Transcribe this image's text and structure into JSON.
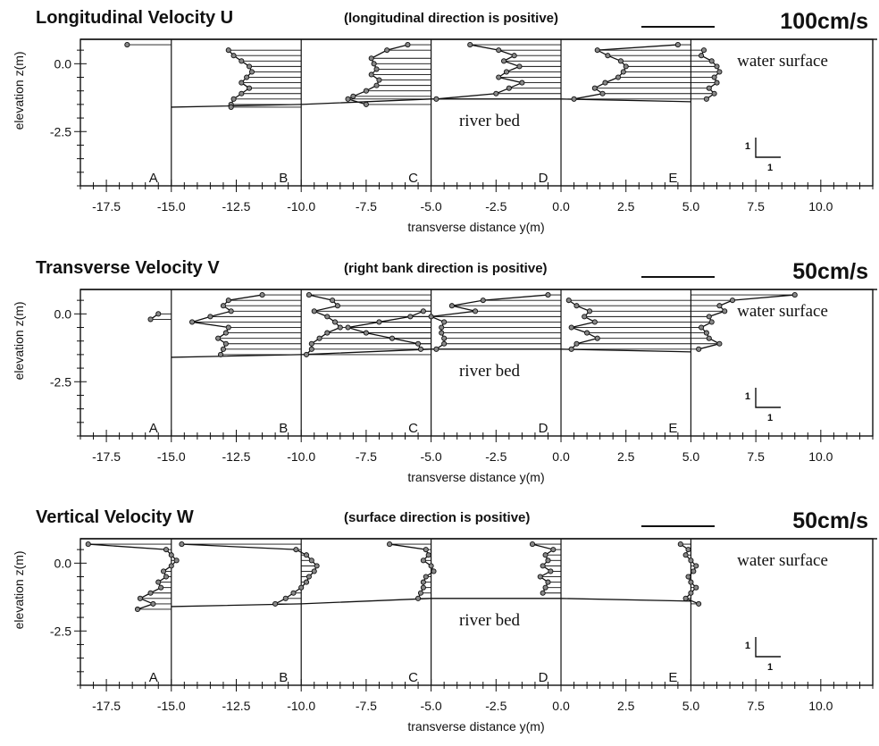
{
  "chart_data": [
    {
      "type": "line",
      "title": "Longitudinal Velocity U",
      "note": "(longitudinal direction is positive)",
      "scale_label": "100cm/s",
      "xlabel": "transverse distance y(m)",
      "ylabel": "elevation z(m)",
      "xlim": [
        -18.5,
        12
      ],
      "ylim": [
        -4.5,
        0.9
      ],
      "x_ticks": [
        "-17.5",
        "-15.0",
        "-12.5",
        "-10.0",
        "-7.5",
        "-5.0",
        "-2.5",
        "0.0",
        "2.5",
        "5.0",
        "7.5",
        "10.0"
      ],
      "y_ticks": [
        "0.0",
        "-2.5"
      ],
      "annotations": {
        "surface": "water surface",
        "bed": "river bed",
        "scale_v": "1",
        "scale_h": "1"
      },
      "stations": [
        {
          "label": "A",
          "x": -15,
          "z": [
            0.7
          ],
          "values": [
            -16.7
          ],
          "bed": -1.6
        },
        {
          "label": "B",
          "x": -10,
          "z": [
            0.5,
            0.3,
            0.1,
            -0.1,
            -0.3,
            -0.5,
            -0.7,
            -0.9,
            -1.1,
            -1.3,
            -1.5,
            -1.6
          ],
          "values": [
            -12.8,
            -12.6,
            -12.3,
            -12.0,
            -11.9,
            -12.1,
            -12.3,
            -12.0,
            -12.3,
            -12.6,
            -12.7,
            -12.7
          ],
          "bed": -1.5
        },
        {
          "label": "C",
          "x": -5,
          "z": [
            0.7,
            0.5,
            0.2,
            0.0,
            -0.2,
            -0.4,
            -0.6,
            -0.8,
            -1.0,
            -1.2,
            -1.3,
            -1.5
          ],
          "values": [
            -5.9,
            -6.7,
            -7.3,
            -7.2,
            -7.1,
            -7.3,
            -7.0,
            -7.1,
            -7.5,
            -8.0,
            -8.2,
            -7.5
          ],
          "bed": -1.3
        },
        {
          "label": "D",
          "x": 0,
          "z": [
            0.7,
            0.5,
            0.3,
            0.1,
            -0.1,
            -0.3,
            -0.5,
            -0.7,
            -0.9,
            -1.1,
            -1.3
          ],
          "values": [
            -3.5,
            -2.4,
            -1.8,
            -2.2,
            -1.6,
            -2.1,
            -2.4,
            -1.5,
            -2.0,
            -2.5,
            -4.8
          ],
          "bed": -1.3
        },
        {
          "label": "E",
          "x": 5,
          "z": [
            0.7,
            0.5,
            0.3,
            0.1,
            -0.1,
            -0.3,
            -0.5,
            -0.7,
            -0.9,
            -1.1,
            -1.3
          ],
          "values": [
            4.5,
            1.4,
            1.8,
            2.3,
            2.5,
            2.4,
            2.2,
            1.7,
            1.3,
            1.6,
            0.5
          ],
          "bed": -1.4
        },
        {
          "label": "",
          "x": 5,
          "z": [
            0.5,
            0.3,
            0.1,
            -0.1,
            -0.3,
            -0.5,
            -0.7,
            -0.9,
            -1.1,
            -1.3
          ],
          "values": [
            5.5,
            5.4,
            5.8,
            6.0,
            6.1,
            5.9,
            6.0,
            5.7,
            5.9,
            5.6
          ],
          "bed": -1.4
        }
      ]
    },
    {
      "type": "line",
      "title": "Transverse Velocity V",
      "note": "(right bank direction is positive)",
      "scale_label": "50cm/s",
      "xlabel": "transverse distance y(m)",
      "ylabel": "elevation z(m)",
      "xlim": [
        -18.5,
        12
      ],
      "ylim": [
        -4.5,
        0.9
      ],
      "x_ticks": [
        "-17.5",
        "-15.0",
        "-12.5",
        "-10.0",
        "-7.5",
        "-5.0",
        "-2.5",
        "0.0",
        "2.5",
        "5.0",
        "7.5",
        "10.0"
      ],
      "y_ticks": [
        "0.0",
        "-2.5"
      ],
      "annotations": {
        "surface": "water surface",
        "bed": "river bed",
        "scale_v": "1",
        "scale_h": "1"
      },
      "stations": [
        {
          "label": "A",
          "x": -15,
          "z": [
            0.0,
            -0.2
          ],
          "values": [
            -15.5,
            -15.8
          ],
          "bed": -1.6
        },
        {
          "label": "B",
          "x": -10,
          "z": [
            0.7,
            0.5,
            0.3,
            0.1,
            -0.1,
            -0.3,
            -0.5,
            -0.7,
            -0.9,
            -1.1,
            -1.3,
            -1.5
          ],
          "values": [
            -11.5,
            -12.8,
            -13.0,
            -12.7,
            -13.5,
            -14.2,
            -12.8,
            -12.9,
            -13.2,
            -12.9,
            -13.0,
            -13.1
          ],
          "bed": -1.5
        },
        {
          "label": "C",
          "x": -5,
          "z": [
            0.7,
            0.5,
            0.3,
            0.1,
            -0.1,
            -0.3,
            -0.5,
            -0.7,
            -0.9,
            -1.1,
            -1.3,
            -1.5
          ],
          "values": [
            -9.7,
            -8.8,
            -8.6,
            -9.5,
            -9.0,
            -8.7,
            -8.5,
            -9.0,
            -9.3,
            -9.6,
            -9.6,
            -9.8
          ],
          "bed": -1.3
        },
        {
          "label": "",
          "x": -5,
          "z": [
            0.1,
            -0.1,
            -0.3,
            -0.5,
            -0.7,
            -0.9,
            -1.1,
            -1.3
          ],
          "values": [
            -5.3,
            -5.8,
            -7.0,
            -8.2,
            -7.5,
            -6.5,
            -5.5,
            -5.4
          ],
          "bed": -1.3
        },
        {
          "label": "D",
          "x": 0,
          "z": [
            0.7,
            0.5,
            0.3,
            0.1,
            -0.1,
            -0.3,
            -0.5,
            -0.7,
            -0.9,
            -1.1,
            -1.3
          ],
          "values": [
            -0.5,
            -3.0,
            -4.2,
            -3.3,
            -5.0,
            -4.5,
            -4.6,
            -4.6,
            -4.5,
            -4.5,
            -4.8
          ],
          "bed": -1.3
        },
        {
          "label": "E",
          "x": 5,
          "z": [
            0.5,
            0.3,
            0.1,
            -0.1,
            -0.3,
            -0.5,
            -0.7,
            -0.9,
            -1.1,
            -1.3
          ],
          "values": [
            0.3,
            0.6,
            1.1,
            0.9,
            1.3,
            0.4,
            1.0,
            1.4,
            0.6,
            0.4
          ],
          "bed": -1.4
        },
        {
          "label": "",
          "x": 5,
          "z": [
            0.7,
            0.5,
            0.3,
            0.1,
            -0.1,
            -0.3,
            -0.5,
            -0.7,
            -0.9,
            -1.1,
            -1.3
          ],
          "values": [
            9.0,
            6.6,
            6.1,
            6.3,
            5.7,
            5.8,
            5.4,
            5.6,
            5.7,
            6.1,
            5.3
          ],
          "bed": -1.4
        }
      ]
    },
    {
      "type": "line",
      "title": "Vertical Velocity W",
      "note": "(surface direction is positive)",
      "scale_label": "50cm/s",
      "xlabel": "transverse distance y(m)",
      "ylabel": "elevation z(m)",
      "xlim": [
        -18.5,
        12
      ],
      "ylim": [
        -4.5,
        0.9
      ],
      "x_ticks": [
        "-17.5",
        "-15.0",
        "-12.5",
        "-10.0",
        "-7.5",
        "-5.0",
        "-2.5",
        "0.0",
        "2.5",
        "5.0",
        "7.5",
        "10.0"
      ],
      "y_ticks": [
        "0.0",
        "-2.5"
      ],
      "annotations": {
        "surface": "water surface",
        "bed": "river bed",
        "scale_v": "1",
        "scale_h": "1"
      },
      "stations": [
        {
          "label": "A",
          "x": -15,
          "z": [
            0.7,
            0.5,
            0.3,
            0.1,
            -0.1,
            -0.3,
            -0.5,
            -0.7,
            -0.9,
            -1.1,
            -1.3,
            -1.5,
            -1.7
          ],
          "values": [
            -18.2,
            -15.2,
            -15.0,
            -14.8,
            -15.0,
            -15.3,
            -15.2,
            -15.5,
            -15.4,
            -15.8,
            -16.2,
            -15.7,
            -16.3
          ],
          "bed": -1.6
        },
        {
          "label": "B",
          "x": -10,
          "z": [
            0.7,
            0.5,
            0.3,
            0.1,
            -0.1,
            -0.3,
            -0.5,
            -0.7,
            -0.9,
            -1.1,
            -1.3,
            -1.5
          ],
          "values": [
            -14.6,
            -10.2,
            -9.8,
            -9.6,
            -9.4,
            -9.5,
            -9.7,
            -9.8,
            -10.0,
            -10.3,
            -10.6,
            -11.0
          ],
          "bed": -1.5
        },
        {
          "label": "C",
          "x": -5,
          "z": [
            0.7,
            0.5,
            0.3,
            0.1,
            -0.1,
            -0.3,
            -0.5,
            -0.7,
            -0.9,
            -1.1,
            -1.3
          ],
          "values": [
            -6.6,
            -5.2,
            -5.1,
            -5.3,
            -5.0,
            -4.9,
            -5.2,
            -5.3,
            -5.3,
            -5.4,
            -5.5
          ],
          "bed": -1.3
        },
        {
          "label": "D",
          "x": 0,
          "z": [
            0.7,
            0.5,
            0.3,
            0.1,
            -0.1,
            -0.3,
            -0.5,
            -0.7,
            -0.9,
            -1.1
          ],
          "values": [
            -1.1,
            -0.3,
            -0.6,
            -0.5,
            -0.7,
            -0.4,
            -0.8,
            -0.5,
            -0.6,
            -0.7
          ],
          "bed": -1.3
        },
        {
          "label": "E",
          "x": 5,
          "z": [
            0.7,
            0.5,
            0.3,
            0.1,
            -0.1,
            -0.3,
            -0.5,
            -0.7,
            -0.9,
            -1.1,
            -1.3,
            -1.5
          ],
          "values": [
            4.6,
            4.9,
            4.8,
            5.0,
            5.2,
            5.1,
            4.9,
            5.0,
            5.2,
            5.0,
            4.8,
            5.3
          ],
          "bed": -1.4
        }
      ]
    }
  ]
}
